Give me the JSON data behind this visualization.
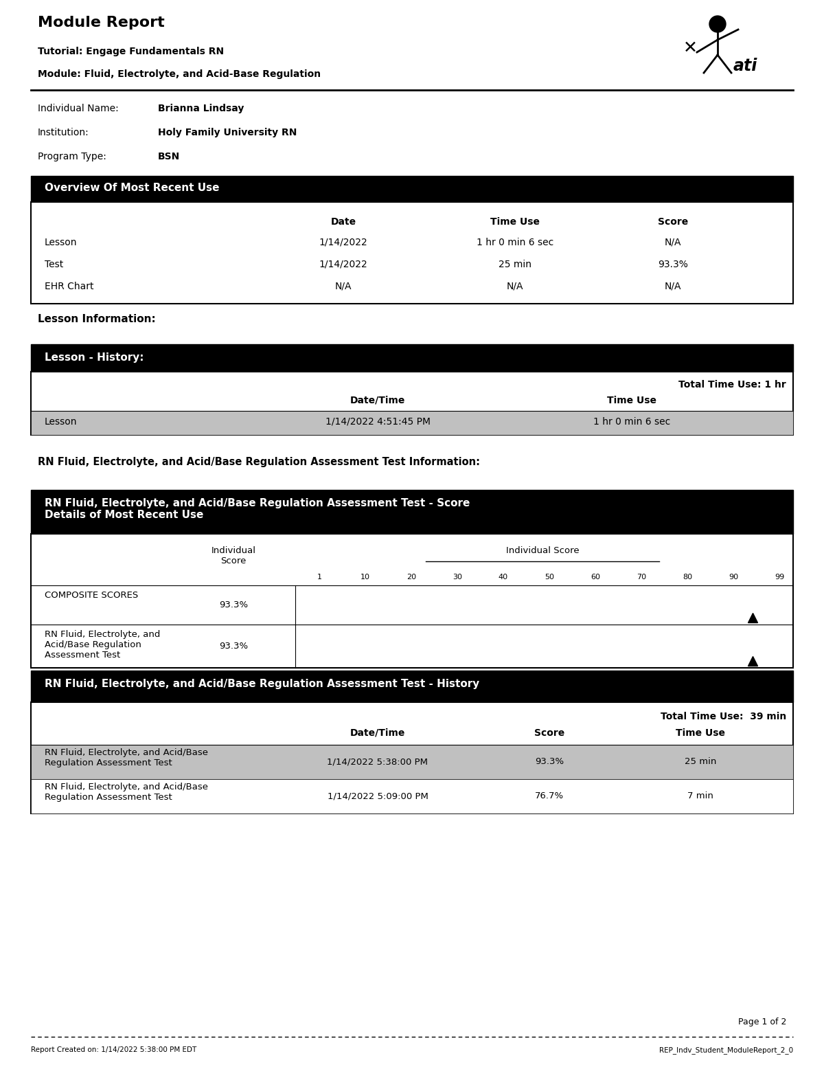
{
  "title": "Module Report",
  "tutorial": "Tutorial: Engage Fundamentals RN",
  "module": "Module: Fluid, Electrolyte, and Acid-Base Regulation",
  "individual_name_label": "Individual Name:",
  "individual_name_value": "Brianna Lindsay",
  "institution_label": "Institution:",
  "institution_value": "Holy Family University RN",
  "program_type_label": "Program Type:",
  "program_type_value": "BSN",
  "overview_header": "Overview Of Most Recent Use",
  "overview_col_headers": [
    "Date",
    "Time Use",
    "Score"
  ],
  "overview_rows": [
    [
      "Lesson",
      "1/14/2022",
      "1 hr 0 min 6 sec",
      "N/A"
    ],
    [
      "Test",
      "1/14/2022",
      "25 min",
      "93.3%"
    ],
    [
      "EHR Chart",
      "N/A",
      "N/A",
      "N/A"
    ]
  ],
  "lesson_info_label": "Lesson Information:",
  "lesson_history_header": "Lesson - History:",
  "lesson_history_total": "Total Time Use: 1 hr",
  "lesson_history_col_headers": [
    "Date/Time",
    "Time Use"
  ],
  "lesson_history_rows": [
    [
      "Lesson",
      "1/14/2022 4:51:45 PM",
      "1 hr 0 min 6 sec"
    ]
  ],
  "rn_test_info_label": "RN Fluid, Electrolyte, and Acid/Base Regulation Assessment Test Information:",
  "score_details_header": "RN Fluid, Electrolyte, and Acid/Base Regulation Assessment Test - Score\nDetails of Most Recent Use",
  "score_col_header1": "Individual\nScore",
  "score_col_header2": "Individual Score",
  "score_scale": [
    "1",
    "10",
    "20",
    "30",
    "40",
    "50",
    "60",
    "70",
    "80",
    "90",
    "99"
  ],
  "score_rows": [
    [
      "COMPOSITE SCORES",
      "93.3%",
      93.3
    ],
    [
      "RN Fluid, Electrolyte, and\nAcid/Base Regulation\nAssessment Test",
      "93.3%",
      93.3
    ]
  ],
  "history_header": "RN Fluid, Electrolyte, and Acid/Base Regulation Assessment Test - History",
  "history_total": "Total Time Use:  39 min",
  "history_col_headers": [
    "Date/Time",
    "Score",
    "Time Use"
  ],
  "history_rows": [
    [
      "RN Fluid, Electrolyte, and Acid/Base\nRegulation Assessment Test",
      "1/14/2022 5:38:00 PM",
      "93.3%",
      "25 min"
    ],
    [
      "RN Fluid, Electrolyte, and Acid/Base\nRegulation Assessment Test",
      "1/14/2022 5:09:00 PM",
      "76.7%",
      "7 min"
    ]
  ],
  "footer_page": "Page 1 of 2",
  "footer_created": "Report Created on: 1/14/2022 5:38:00 PM EDT",
  "footer_report": "REP_Indv_Student_ModuleReport_2_0",
  "bg_color": "#ffffff",
  "header_bg": "#000000",
  "header_fg": "#ffffff",
  "row_alt_bg": "#c0c0c0",
  "border_color": "#000000",
  "text_color": "#000000"
}
